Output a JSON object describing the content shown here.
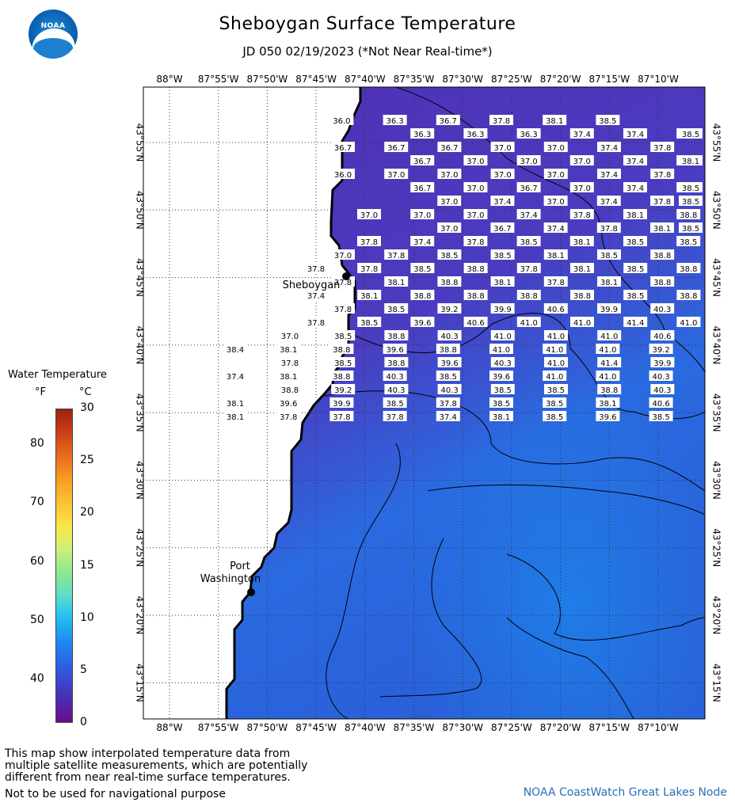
{
  "header": {
    "logo_text": "NOAA",
    "title": "Sheboygan Surface Temperature",
    "subtitle": "JD 050 02/19/2023 (*Not Near Real-time*)"
  },
  "map": {
    "lon_labels": [
      "88°W",
      "87°55'W",
      "87°50'W",
      "87°45'W",
      "87°40'W",
      "87°35'W",
      "87°30'W",
      "87°25'W",
      "87°20'W",
      "87°15'W",
      "87°10'W"
    ],
    "lat_labels": [
      "43°55'N",
      "43°50'N",
      "43°45'N",
      "43°40'N",
      "43°35'N",
      "43°30'N",
      "43°25'N",
      "43°20'N",
      "43°15'N"
    ],
    "cities": [
      {
        "name": "Sheboygan",
        "lines": [
          "Sheboygan"
        ]
      },
      {
        "name": "Port Washington",
        "lines": [
          "Port",
          "Washington"
        ]
      }
    ],
    "colors": {
      "land": "#ffffff",
      "water_cold": "#4a2fb8",
      "water_warm": "#1f7ae8",
      "grid": "#555555"
    },
    "grid_rows": [
      [
        "",
        "",
        "36.0",
        "36.3",
        "36.7",
        "37.8",
        "38.1",
        "38.5",
        ""
      ],
      [
        "",
        "36.3",
        "36.3",
        "36.3",
        "37.4",
        "37.4",
        "38.1",
        "38.5"
      ],
      [
        "36.7",
        "36.7",
        "36.7",
        "37.0",
        "37.0",
        "37.4",
        "37.8",
        ""
      ],
      [
        "",
        "36.7",
        "37.0",
        "37.0",
        "37.0",
        "37.4",
        "37.4",
        "38.1"
      ],
      [
        "36.0",
        "37.0",
        "37.0",
        "37.0",
        "37.0",
        "37.4",
        "37.8",
        ""
      ],
      [
        "",
        "36.7",
        "37.0",
        "36.7",
        "37.0",
        "37.4",
        "37.8",
        "38.5"
      ],
      [
        "",
        "37.0",
        "37.4",
        "37.0",
        "37.4",
        "37.8",
        "38.5",
        ""
      ],
      [
        "37.0",
        "37.0",
        "37.0",
        "37.4",
        "37.8",
        "38.1",
        "38.8",
        ""
      ],
      [
        "",
        "37.0",
        "36.7",
        "37.4",
        "37.8",
        "38.1",
        "38.5",
        ""
      ],
      [
        "37.8",
        "37.4",
        "37.8",
        "38.5",
        "38.1",
        "38.5",
        "38.5",
        ""
      ],
      [
        "37.0",
        "37.8",
        "38.5",
        "38.5",
        "38.1",
        "38.5",
        "38.8",
        ""
      ],
      [
        "37.8",
        "37.8",
        "38.5",
        "38.8",
        "37.8",
        "38.1",
        "38.5",
        "38.8"
      ],
      [
        "37.8",
        "38.1",
        "38.8",
        "38.1",
        "37.8",
        "38.1",
        "38.8",
        ""
      ],
      [
        "37.4",
        "38.1",
        "38.8",
        "38.8",
        "38.8",
        "38.8",
        "38.5",
        "38.8"
      ],
      [
        "37.8",
        "38.5",
        "39.2",
        "39.9",
        "40.6",
        "39.9",
        "40.3",
        ""
      ],
      [
        "37.8",
        "38.5",
        "39.6",
        "40.6",
        "41.0",
        "41.0",
        "41.4",
        "41.0"
      ],
      [
        "37.0",
        "38.5",
        "38.8",
        "40.3",
        "41.0",
        "41.0",
        "41.0",
        "40.6"
      ],
      [
        "38.4",
        "38.1",
        "38.8",
        "39.6",
        "38.8",
        "41.0",
        "41.0",
        "41.0",
        "39.2"
      ],
      [
        "37.8",
        "38.5",
        "38.8",
        "39.6",
        "40.3",
        "41.0",
        "41.4",
        "39.9"
      ],
      [
        "37.4",
        "38.1",
        "38.8",
        "40.3",
        "38.5",
        "39.6",
        "41.0",
        "41.0",
        "40.3"
      ],
      [
        "38.8",
        "39.2",
        "40.3",
        "40.3",
        "38.5",
        "38.5",
        "38.8",
        "40.3"
      ],
      [
        "38.1",
        "39.6",
        "39.9",
        "38.5",
        "37.8",
        "38.5",
        "38.5",
        "38.1",
        "40.6"
      ],
      [
        "38.1",
        "37.8",
        "37.8",
        "37.8",
        "37.4",
        "38.1",
        "38.5",
        "39.6",
        "38.5"
      ]
    ]
  },
  "legend": {
    "title": "Water Temperature",
    "unit_f": "°F",
    "unit_c": "°C",
    "f_ticks": [
      "80",
      "70",
      "60",
      "50",
      "40"
    ],
    "c_ticks": [
      "30",
      "25",
      "20",
      "15",
      "10",
      "5",
      "0"
    ]
  },
  "footer": {
    "note": "This map show interpolated temperature data from\nmultiple satellite measurements, which are potentially\ndifferent from near real-time surface temperatures.",
    "nav_warning": "Not to be used for navigational purpose",
    "credit": "NOAA CoastWatch Great Lakes Node"
  }
}
